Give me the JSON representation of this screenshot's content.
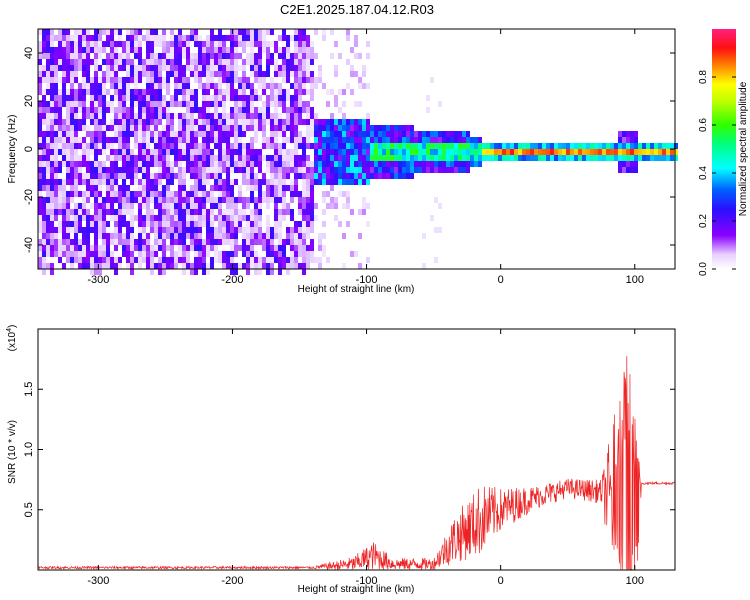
{
  "title": "C2E1.2025.187.04.12.R03",
  "chart_data": [
    {
      "type": "heatmap",
      "xlabel": "Height of straight line (km)",
      "ylabel": "Frequency (Hz)",
      "xlim": [
        -345,
        130
      ],
      "ylim": [
        -50,
        50
      ],
      "xticks": [
        -300,
        -200,
        -100,
        0,
        100
      ],
      "yticks": [
        -40,
        -20,
        0,
        20,
        40
      ],
      "colorbar": {
        "label": "Normalized spectral amplitude",
        "range": [
          0.0,
          1.0
        ],
        "ticks": [
          0.0,
          0.2,
          0.4,
          0.6,
          0.8
        ]
      },
      "description_points": [
        {
          "x": -345,
          "y_spread": 50,
          "amplitude": 0.15
        },
        {
          "x": -140,
          "y_spread": 50,
          "amplitude": 0.15
        },
        {
          "x": -130,
          "y_spread": 12,
          "amplitude": 0.35
        },
        {
          "x": -60,
          "y_spread": 10,
          "amplitude": 0.4
        },
        {
          "x": 0,
          "y_spread": 3,
          "amplitude": 0.85
        },
        {
          "x": 90,
          "y_spread": 8,
          "amplitude": 0.6
        },
        {
          "x": 130,
          "y_spread": 2,
          "amplitude": 0.9
        }
      ]
    },
    {
      "type": "line",
      "xlabel": "Height of straight line (km)",
      "ylabel": "SNR (10 * v/v)",
      "yscale_note": "(x10",
      "yscale_exp": "4",
      "yscale_close": ")",
      "xlim": [
        -345,
        130
      ],
      "ylim": [
        0,
        2.0
      ],
      "xticks": [
        -300,
        -200,
        -100,
        0,
        100
      ],
      "yticks": [
        0.5,
        1.0,
        1.5
      ],
      "ytick_labels": [
        "0.5",
        "1.0",
        "1.5"
      ],
      "color": "#ee2222",
      "envelope": [
        {
          "x": -345,
          "base": 0.02,
          "amp": 0.01
        },
        {
          "x": -140,
          "base": 0.02,
          "amp": 0.01
        },
        {
          "x": -110,
          "base": 0.05,
          "amp": 0.06
        },
        {
          "x": -95,
          "base": 0.12,
          "amp": 0.12
        },
        {
          "x": -80,
          "base": 0.05,
          "amp": 0.05
        },
        {
          "x": -50,
          "base": 0.05,
          "amp": 0.05
        },
        {
          "x": -35,
          "base": 0.25,
          "amp": 0.2
        },
        {
          "x": -15,
          "base": 0.42,
          "amp": 0.3
        },
        {
          "x": 0,
          "base": 0.5,
          "amp": 0.18
        },
        {
          "x": 25,
          "base": 0.6,
          "amp": 0.1
        },
        {
          "x": 50,
          "base": 0.68,
          "amp": 0.08
        },
        {
          "x": 75,
          "base": 0.65,
          "amp": 0.1
        },
        {
          "x": 85,
          "base": 0.6,
          "amp": 0.7
        },
        {
          "x": 95,
          "base": 0.55,
          "amp": 1.3
        },
        {
          "x": 103,
          "base": 0.5,
          "amp": 0.45
        },
        {
          "x": 105,
          "base": 0.72,
          "amp": 0.01
        },
        {
          "x": 130,
          "base": 0.72,
          "amp": 0.01
        }
      ]
    }
  ]
}
